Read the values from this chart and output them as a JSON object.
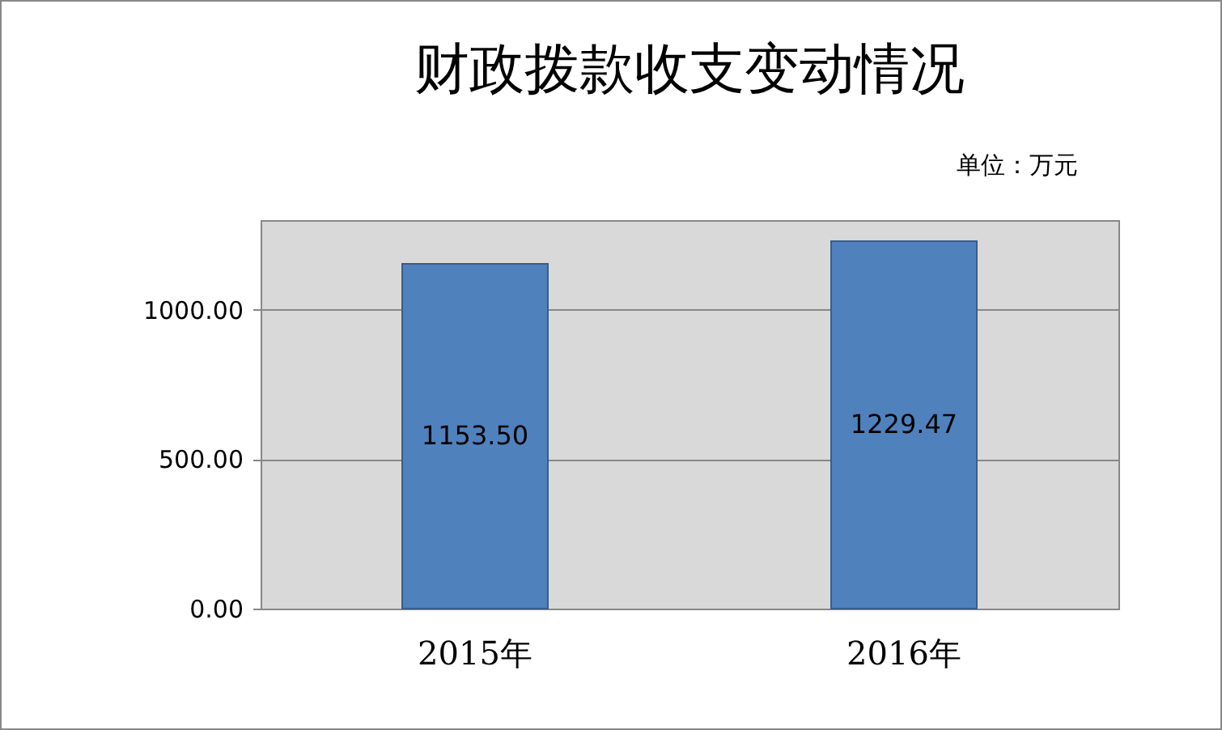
{
  "chart_data": {
    "type": "bar",
    "title": "财政拨款收支变动情况",
    "annotations": [
      "单位：万元"
    ],
    "categories": [
      "2015年",
      "2016年"
    ],
    "values": [
      1153.5,
      1229.47
    ],
    "value_labels": [
      "1153.50",
      "1229.47"
    ],
    "color": "#4f81bd",
    "ylim": [
      0,
      1300
    ],
    "yticks": [
      {
        "value": 0,
        "label": "0.00"
      },
      {
        "value": 500,
        "label": "500.00"
      },
      {
        "value": 1000,
        "label": "1000.00"
      }
    ],
    "grid": "y"
  }
}
